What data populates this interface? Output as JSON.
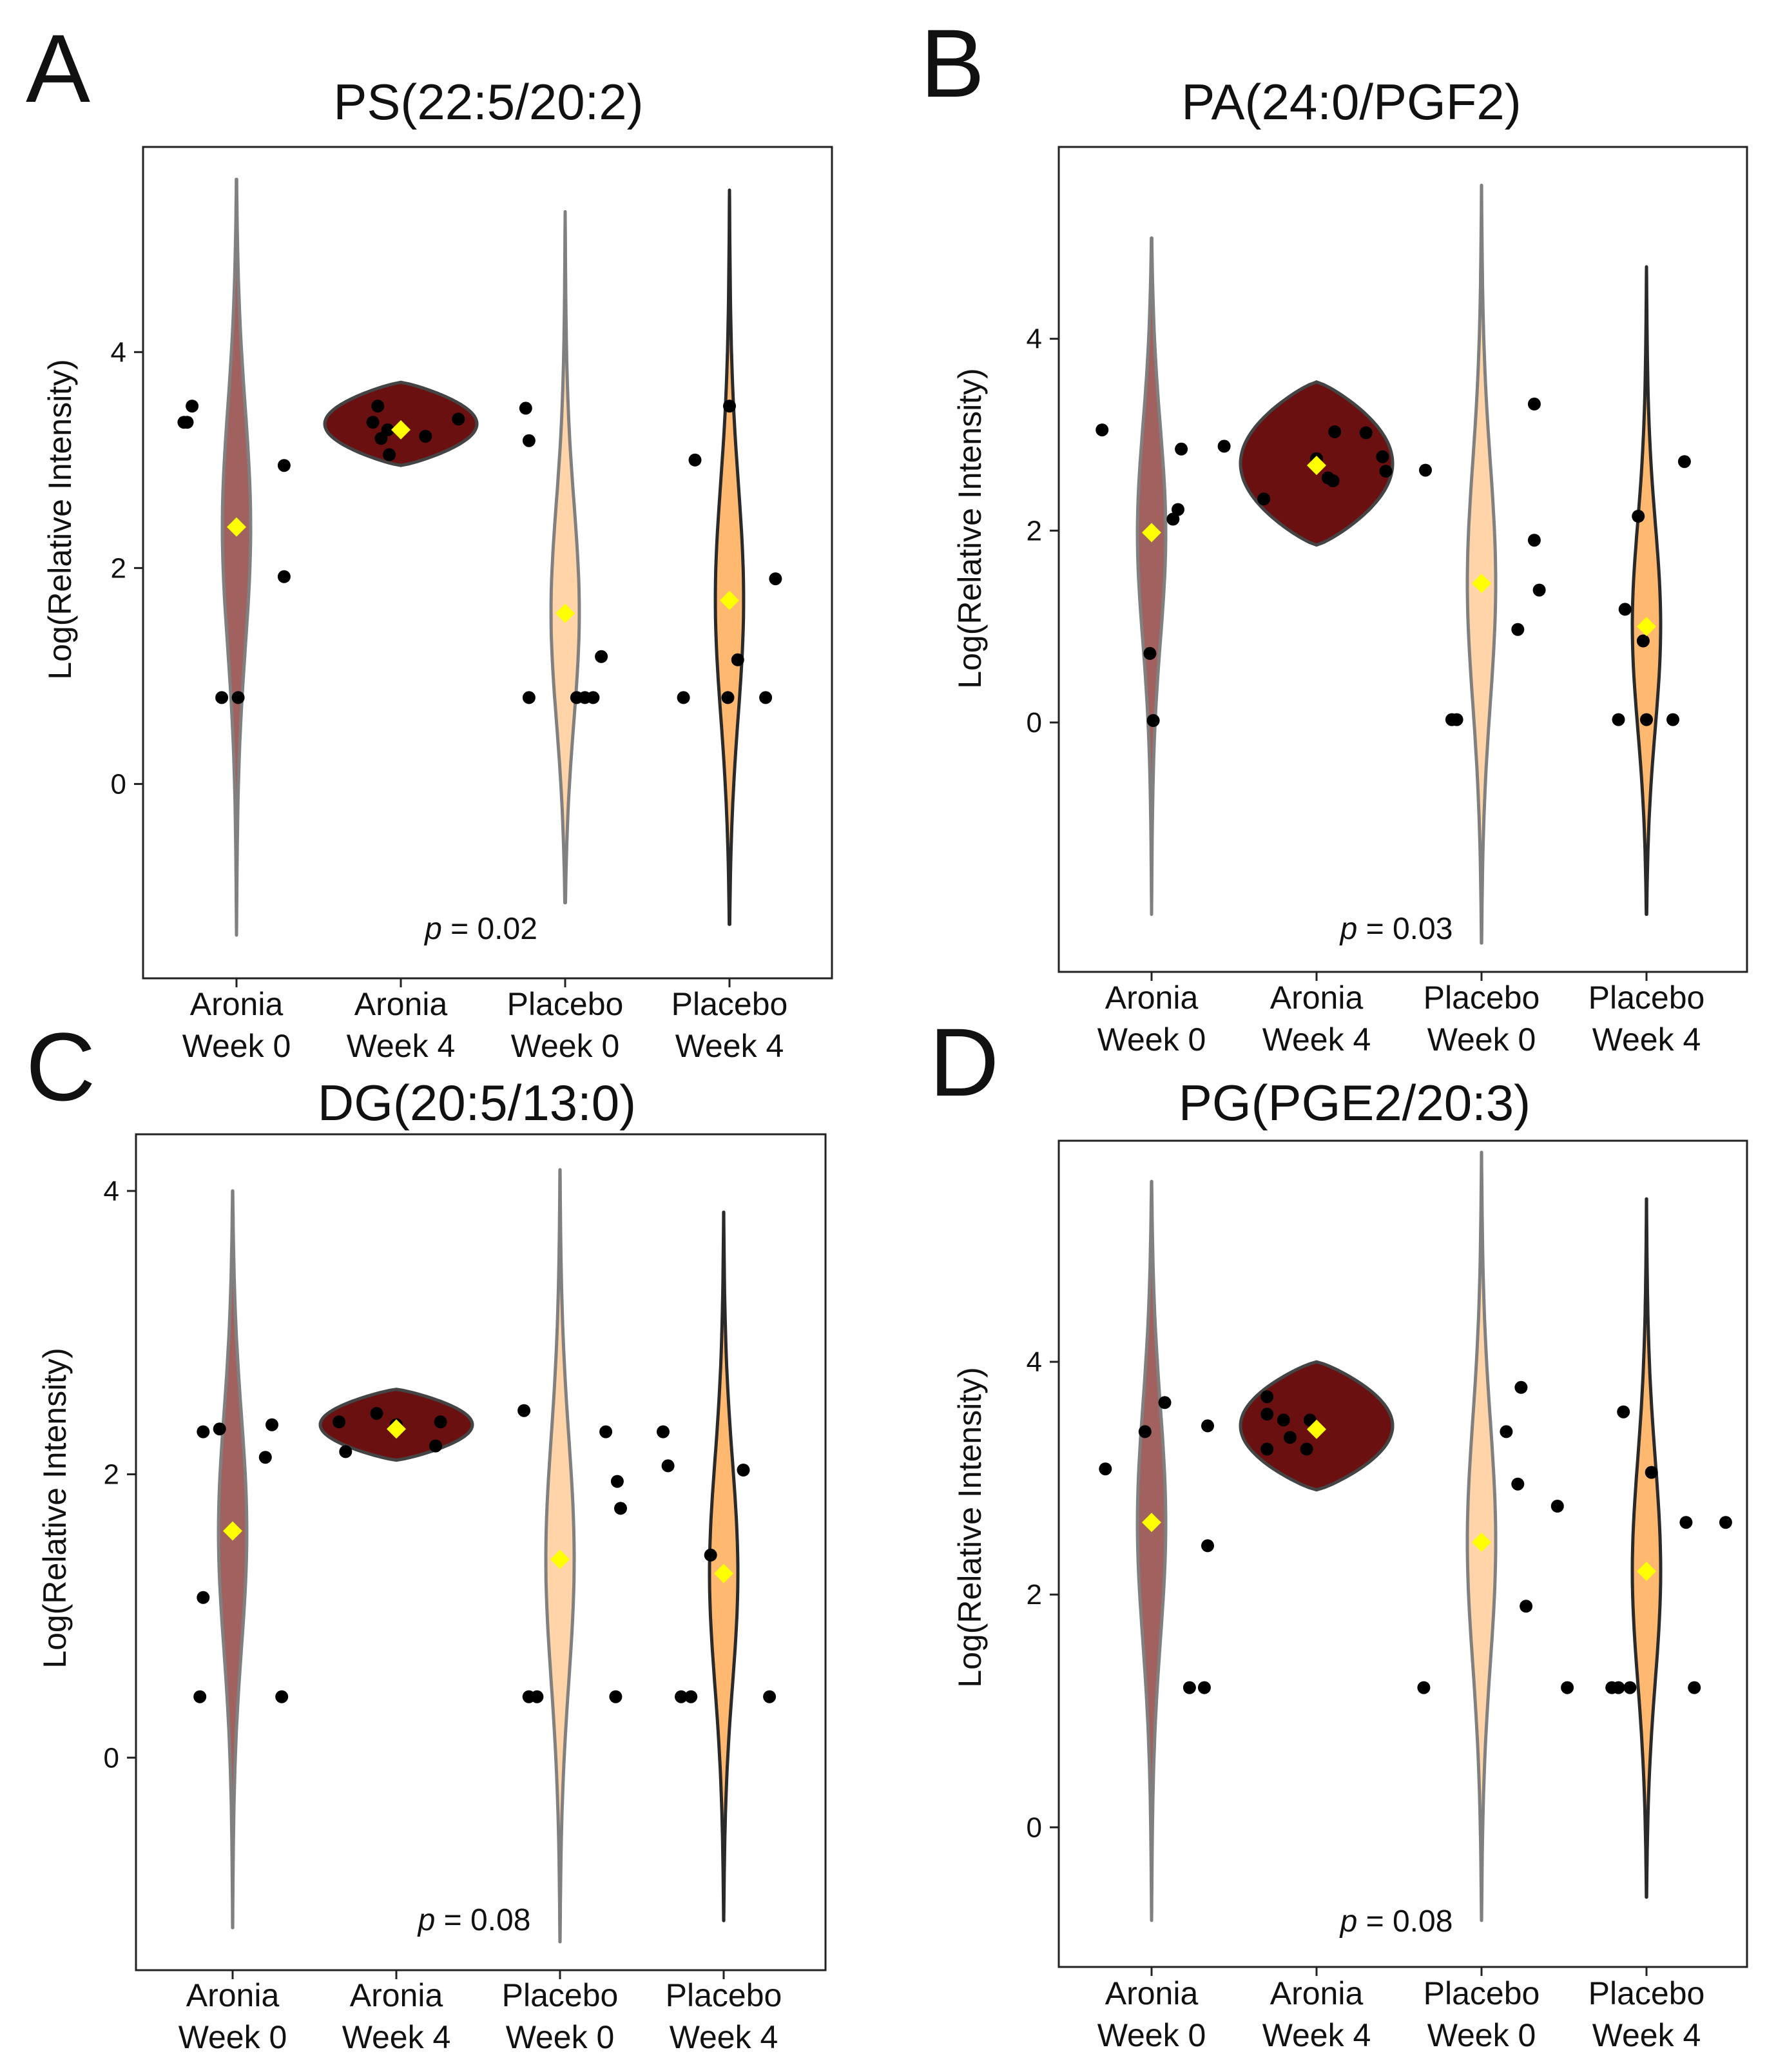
{
  "figure": {
    "panels": [
      "A",
      "B",
      "C",
      "D"
    ],
    "p_prefix": "p",
    "colors": {
      "aronia_w0_fill": "#a0615f",
      "aronia_w4_fill": "#6b1010",
      "placebo_w0_fill": "#ffd4a8",
      "placebo_w4_fill": "#ffb870",
      "grey_outline": "#808080",
      "dark_outline": "#333333",
      "point": "#000000",
      "mean_marker": "#ffff00"
    }
  },
  "chart_data": [
    {
      "letter": "A",
      "type": "violin",
      "title": "PS(22:5/20:2)",
      "ylabel": "Log(Relative Intensity)",
      "ylim": [
        -1.8,
        5.9
      ],
      "yticks": [
        0,
        2,
        4
      ],
      "categories": [
        [
          "Aronia",
          "Week 0"
        ],
        [
          "Aronia",
          "Week 4"
        ],
        [
          "Placebo",
          "Week 0"
        ],
        [
          "Placebo",
          "Week 4"
        ]
      ],
      "pvalue": "= 0.02",
      "groups": [
        {
          "fill": "#a0615f",
          "outline": "#808080",
          "min": -1.4,
          "max": 5.6,
          "mean": 2.38,
          "points": [
            [
              -0.3,
              3.35
            ],
            [
              -0.32,
              3.35
            ],
            [
              -0.27,
              3.5
            ],
            [
              -0.09,
              0.8
            ],
            [
              0.01,
              0.8
            ],
            [
              0.29,
              2.95
            ],
            [
              0.29,
              1.92
            ]
          ]
        },
        {
          "fill": "#6b1010",
          "outline": "#444444",
          "min": 2.95,
          "max": 3.72,
          "mean": 3.28,
          "points": [
            [
              -0.17,
              3.35
            ],
            [
              -0.14,
              3.5
            ],
            [
              -0.12,
              3.2
            ],
            [
              -0.07,
              3.05
            ],
            [
              -0.08,
              3.28
            ],
            [
              0.15,
              3.22
            ],
            [
              0.35,
              3.38
            ]
          ]
        },
        {
          "fill": "#ffd4a8",
          "outline": "#808080",
          "min": -1.1,
          "max": 5.3,
          "mean": 1.58,
          "points": [
            [
              -0.24,
              3.48
            ],
            [
              -0.22,
              3.18
            ],
            [
              -0.22,
              0.8
            ],
            [
              0.07,
              0.8
            ],
            [
              0.12,
              0.8
            ],
            [
              0.17,
              0.8
            ],
            [
              0.22,
              1.18
            ]
          ]
        },
        {
          "fill": "#ffb870",
          "outline": "#2a2a2a",
          "min": -1.3,
          "max": 5.5,
          "mean": 1.7,
          "points": [
            [
              -0.21,
              3.0
            ],
            [
              -0.28,
              0.8
            ],
            [
              0.0,
              3.5
            ],
            [
              -0.01,
              0.8
            ],
            [
              0.05,
              1.15
            ],
            [
              0.22,
              0.8
            ],
            [
              0.28,
              1.9
            ]
          ]
        }
      ]
    },
    {
      "letter": "B",
      "type": "violin",
      "title": "PA(24:0/PGF2)",
      "ylabel": "Log(Relative Intensity)",
      "ylim": [
        -2.6,
        6.0
      ],
      "yticks": [
        0,
        2,
        4
      ],
      "categories": [
        [
          "Aronia",
          "Week 0"
        ],
        [
          "Aronia",
          "Week 4"
        ],
        [
          "Placebo",
          "Week 0"
        ],
        [
          "Placebo",
          "Week 4"
        ]
      ],
      "pvalue": "= 0.03",
      "groups": [
        {
          "fill": "#a0615f",
          "outline": "#808080",
          "min": -2.0,
          "max": 5.05,
          "mean": 1.98,
          "points": [
            [
              -0.3,
              3.05
            ],
            [
              -0.01,
              0.72
            ],
            [
              0.01,
              0.02
            ],
            [
              0.13,
              2.12
            ],
            [
              0.16,
              2.22
            ],
            [
              0.18,
              2.85
            ],
            [
              0.44,
              2.88
            ]
          ]
        },
        {
          "fill": "#6b1010",
          "outline": "#444444",
          "min": 1.85,
          "max": 3.55,
          "mean": 2.68,
          "points": [
            [
              -0.32,
              2.33
            ],
            [
              0.0,
              2.75
            ],
            [
              0.07,
              2.55
            ],
            [
              0.1,
              2.52
            ],
            [
              0.11,
              3.03
            ],
            [
              0.3,
              3.02
            ],
            [
              0.4,
              2.77
            ],
            [
              0.42,
              2.62
            ],
            [
              0.66,
              2.63
            ]
          ]
        },
        {
          "fill": "#ffd4a8",
          "outline": "#808080",
          "min": -2.3,
          "max": 5.6,
          "mean": 1.45,
          "points": [
            [
              -0.18,
              0.03
            ],
            [
              -0.15,
              0.03
            ],
            [
              0.22,
              0.97
            ],
            [
              0.32,
              1.9
            ],
            [
              0.32,
              3.32
            ],
            [
              0.35,
              1.38
            ]
          ]
        },
        {
          "fill": "#ffb870",
          "outline": "#2a2a2a",
          "min": -2.0,
          "max": 4.75,
          "mean": 1.0,
          "points": [
            [
              -0.17,
              0.03
            ],
            [
              -0.13,
              1.18
            ],
            [
              -0.05,
              2.15
            ],
            [
              -0.02,
              0.85
            ],
            [
              0.0,
              0.03
            ],
            [
              0.16,
              0.03
            ],
            [
              0.23,
              2.72
            ]
          ]
        }
      ]
    },
    {
      "letter": "C",
      "type": "violin",
      "title": "DG(20:5/13:0)",
      "ylabel": "Log(Relative Intensity)",
      "ylim": [
        -1.5,
        4.4
      ],
      "yticks": [
        0,
        2,
        4
      ],
      "categories": [
        [
          "Aronia",
          "Week 0"
        ],
        [
          "Aronia",
          "Week 4"
        ],
        [
          "Placebo",
          "Week 0"
        ],
        [
          "Placebo",
          "Week 4"
        ]
      ],
      "pvalue": "= 0.08",
      "groups": [
        {
          "fill": "#a0615f",
          "outline": "#808080",
          "min": -1.2,
          "max": 4.0,
          "mean": 1.6,
          "points": [
            [
              -0.18,
              2.3
            ],
            [
              -0.08,
              2.32
            ],
            [
              -0.18,
              1.13
            ],
            [
              -0.2,
              0.43
            ],
            [
              0.2,
              2.12
            ],
            [
              0.24,
              2.35
            ],
            [
              0.3,
              0.43
            ]
          ]
        },
        {
          "fill": "#6b1010",
          "outline": "#444444",
          "min": 2.1,
          "max": 2.6,
          "mean": 2.32,
          "points": [
            [
              -0.35,
              2.37
            ],
            [
              -0.31,
              2.16
            ],
            [
              -0.12,
              2.43
            ],
            [
              0.24,
              2.2
            ],
            [
              0.27,
              2.37
            ],
            [
              0.0,
              2.35
            ]
          ]
        },
        {
          "fill": "#ffd4a8",
          "outline": "#808080",
          "min": -1.3,
          "max": 4.15,
          "mean": 1.4,
          "points": [
            [
              -0.22,
              2.45
            ],
            [
              -0.19,
              0.43
            ],
            [
              -0.14,
              0.43
            ],
            [
              0.28,
              2.3
            ],
            [
              0.35,
              1.95
            ],
            [
              0.37,
              1.76
            ],
            [
              0.34,
              0.43
            ]
          ]
        },
        {
          "fill": "#ffb870",
          "outline": "#2a2a2a",
          "min": -1.15,
          "max": 3.85,
          "mean": 1.3,
          "points": [
            [
              -0.37,
              2.3
            ],
            [
              -0.34,
              2.06
            ],
            [
              -0.26,
              0.43
            ],
            [
              -0.2,
              0.43
            ],
            [
              -0.08,
              1.43
            ],
            [
              0.12,
              2.03
            ],
            [
              0.28,
              0.43
            ]
          ]
        }
      ]
    },
    {
      "letter": "D",
      "type": "violin",
      "title": "PG(PGE2/20:3)",
      "ylabel": "Log(Relative Intensity)",
      "ylim": [
        -1.2,
        5.9
      ],
      "yticks": [
        0,
        2,
        4
      ],
      "categories": [
        [
          "Aronia",
          "Week 0"
        ],
        [
          "Aronia",
          "Week 4"
        ],
        [
          "Placebo",
          "Week 0"
        ],
        [
          "Placebo",
          "Week 4"
        ]
      ],
      "pvalue": "= 0.08",
      "groups": [
        {
          "fill": "#a0615f",
          "outline": "#808080",
          "min": -0.8,
          "max": 5.55,
          "mean": 2.62,
          "points": [
            [
              -0.28,
              3.08
            ],
            [
              -0.04,
              3.4
            ],
            [
              0.08,
              3.65
            ],
            [
              0.23,
              1.2
            ],
            [
              0.32,
              1.2
            ],
            [
              0.34,
              3.45
            ],
            [
              0.34,
              2.42
            ]
          ]
        },
        {
          "fill": "#6b1010",
          "outline": "#444444",
          "min": 2.9,
          "max": 4.0,
          "mean": 3.42,
          "points": [
            [
              -0.3,
              3.7
            ],
            [
              -0.3,
              3.55
            ],
            [
              -0.3,
              3.25
            ],
            [
              -0.2,
              3.5
            ],
            [
              -0.16,
              3.35
            ],
            [
              -0.06,
              3.25
            ],
            [
              -0.04,
              3.5
            ]
          ]
        },
        {
          "fill": "#ffd4a8",
          "outline": "#808080",
          "min": -0.8,
          "max": 5.8,
          "mean": 2.45,
          "points": [
            [
              -0.35,
              1.2
            ],
            [
              0.15,
              3.4
            ],
            [
              0.22,
              2.95
            ],
            [
              0.24,
              3.78
            ],
            [
              0.27,
              1.9
            ],
            [
              0.46,
              2.76
            ],
            [
              0.52,
              1.2
            ]
          ]
        },
        {
          "fill": "#ffb870",
          "outline": "#2a2a2a",
          "min": -0.6,
          "max": 5.4,
          "mean": 2.2,
          "points": [
            [
              -0.14,
              3.57
            ],
            [
              -0.21,
              1.2
            ],
            [
              -0.17,
              1.2
            ],
            [
              -0.1,
              1.2
            ],
            [
              0.03,
              3.05
            ],
            [
              0.24,
              2.62
            ],
            [
              0.29,
              1.2
            ],
            [
              0.48,
              2.62
            ]
          ]
        }
      ]
    }
  ]
}
